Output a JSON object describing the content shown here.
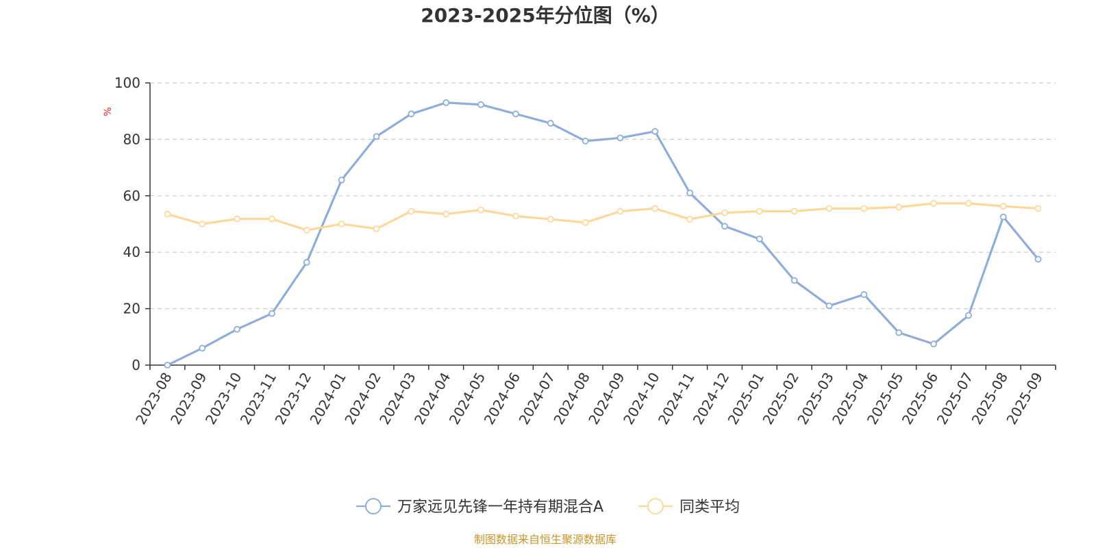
{
  "chart_data": {
    "type": "line",
    "title": "2023-2025年分位图（%）",
    "ylabel": "%",
    "xlabel": "",
    "ylim": [
      0,
      100
    ],
    "yticks": [
      0,
      20,
      40,
      60,
      80,
      100
    ],
    "grid": true,
    "legend_position": "bottom-center",
    "categories": [
      "2023-08",
      "2023-09",
      "2023-10",
      "2023-11",
      "2023-12",
      "2024-01",
      "2024-02",
      "2024-03",
      "2024-04",
      "2024-05",
      "2024-06",
      "2024-07",
      "2024-08",
      "2024-09",
      "2024-10",
      "2024-11",
      "2024-12",
      "2025-01",
      "2025-02",
      "2025-03",
      "2025-04",
      "2025-05",
      "2025-06",
      "2025-07",
      "2025-08",
      "2025-09"
    ],
    "series": [
      {
        "name": "万家远见先锋一年持有期混合A",
        "color": "#8eadd9",
        "values": [
          0,
          6,
          12.7,
          18.3,
          36.4,
          65.6,
          81,
          89,
          93,
          92.3,
          89,
          85.7,
          79.4,
          80.5,
          82.8,
          61,
          49.2,
          44.7,
          30,
          21,
          25,
          11.5,
          7.5,
          17.6,
          52.5,
          37.5
        ]
      },
      {
        "name": "同类平均",
        "color": "#fdd89a",
        "values": [
          53.5,
          50,
          51.8,
          51.8,
          47.8,
          50,
          48.3,
          54.5,
          53.5,
          55,
          52.8,
          51.7,
          50.5,
          54.5,
          55.5,
          51.7,
          54,
          54.5,
          54.5,
          55.5,
          55.5,
          56,
          57.3,
          57.3,
          56.3,
          55.5
        ]
      }
    ],
    "source": "制图数据来自恒生聚源数据库"
  }
}
